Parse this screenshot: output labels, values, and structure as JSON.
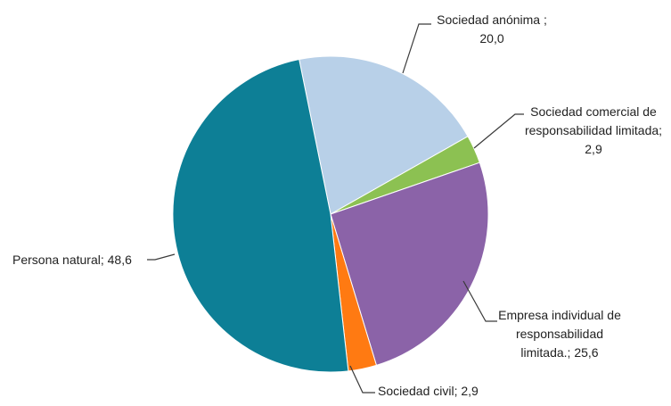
{
  "chart_data": {
    "type": "pie",
    "slices": [
      {
        "name": "Sociedad anónima",
        "value": 20.0,
        "color": "#b8d0e8",
        "label_lines": [
          "Sociedad anónima ;",
          "20,0"
        ]
      },
      {
        "name": "Sociedad comercial de responsabilidad limitada",
        "value": 2.9,
        "color": "#8cc152",
        "label_lines": [
          "Sociedad comercial de",
          "responsabilidad limitada;",
          "2,9"
        ]
      },
      {
        "name": "Empresa individual de responsabilidad limitada.",
        "value": 25.6,
        "color": "#8b63a8",
        "label_lines": [
          "Empresa individual de",
          "responsabilidad",
          "limitada.; 25,6"
        ]
      },
      {
        "name": "Sociedad civil",
        "value": 2.9,
        "color": "#ff7a12",
        "label_lines": [
          "Sociedad civil; 2,9"
        ]
      },
      {
        "name": "Persona natural",
        "value": 48.6,
        "color": "#0d7f96",
        "label_lines": [
          "Persona natural; 48,6"
        ]
      }
    ]
  }
}
